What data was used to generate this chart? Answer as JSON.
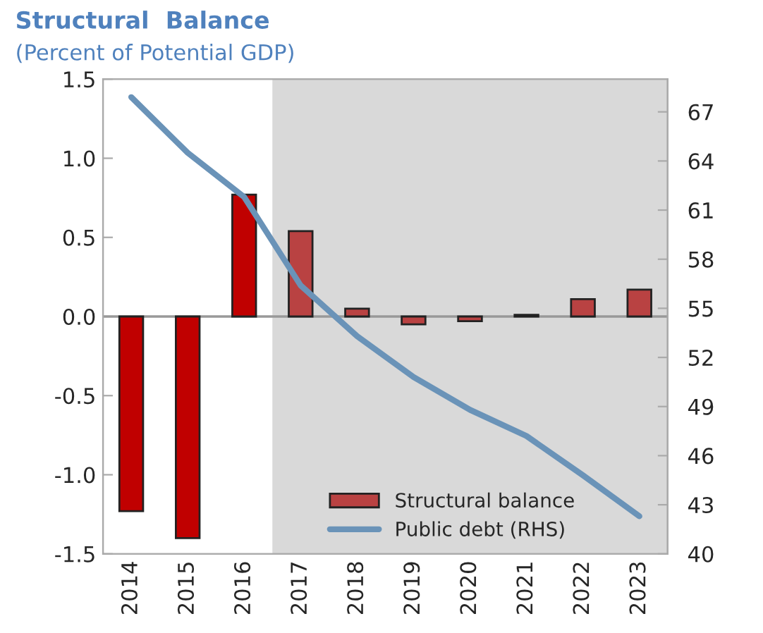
{
  "chart_data": {
    "type": "bar",
    "title": "Structural  Balance",
    "subtitle": "(Percent of Potential GDP)",
    "categories": [
      "2014",
      "2015",
      "2016",
      "2017",
      "2018",
      "2019",
      "2020",
      "2021",
      "2022",
      "2023"
    ],
    "series": [
      {
        "name": "Structural balance",
        "color": "#b94242",
        "colors": [
          "#c00000",
          "#c00000",
          "#c00000",
          "#b94242",
          "#b94242",
          "#b94242",
          "#b94242",
          "#b94242",
          "#b94242",
          "#b94242"
        ],
        "values": [
          -1.23,
          -1.4,
          0.77,
          0.54,
          0.05,
          -0.05,
          -0.03,
          0.01,
          0.11,
          0.17
        ]
      },
      {
        "name": "Public debt (RHS)",
        "type": "line",
        "axis": "y2",
        "color": "#6a93b8",
        "values": [
          67.9,
          64.5,
          61.8,
          56.4,
          53.3,
          50.8,
          48.8,
          47.2,
          44.8,
          42.3
        ]
      }
    ],
    "ylim": [
      -1.5,
      1.5
    ],
    "yticks": [
      -1.5,
      {
        "value": -1,
        "label": "-1.0"
      },
      -0.5,
      {
        "value": 0,
        "label": "0.0"
      },
      0.5,
      {
        "value": 1,
        "label": "1.0"
      },
      1.5
    ],
    "ref_lines": [
      {
        "axis": "y",
        "value": 0,
        "color": "#999999"
      }
    ],
    "y2lim": [
      40,
      69
    ],
    "y2ticks": [
      40,
      43,
      46,
      49,
      52,
      55,
      58,
      61,
      64,
      67
    ],
    "bands": [
      {
        "axis": "x",
        "from": "2017",
        "to": "2023",
        "color": "#d9d9d9"
      }
    ],
    "legend": "bottom right",
    "grid": false
  }
}
